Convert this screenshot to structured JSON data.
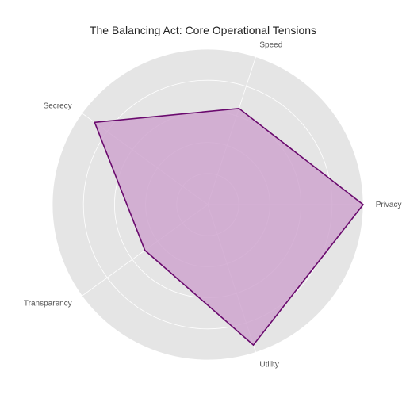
{
  "chart_data": {
    "type": "radar",
    "title": "The Balancing Act: Core Operational Tensions",
    "axes": [
      "Privacy",
      "Speed",
      "Secrecy",
      "Transparency",
      "Utility"
    ],
    "values": [
      10,
      6.5,
      9,
      5,
      9.5
    ],
    "r_range": [
      0,
      10
    ],
    "ring_ticks": [
      2,
      4,
      6,
      8,
      10
    ],
    "grid": true,
    "colors": {
      "line": "#6a0a6e",
      "fill": "#cfa6cf",
      "background": "#e5e5e5",
      "grid": "#ffffff"
    }
  }
}
